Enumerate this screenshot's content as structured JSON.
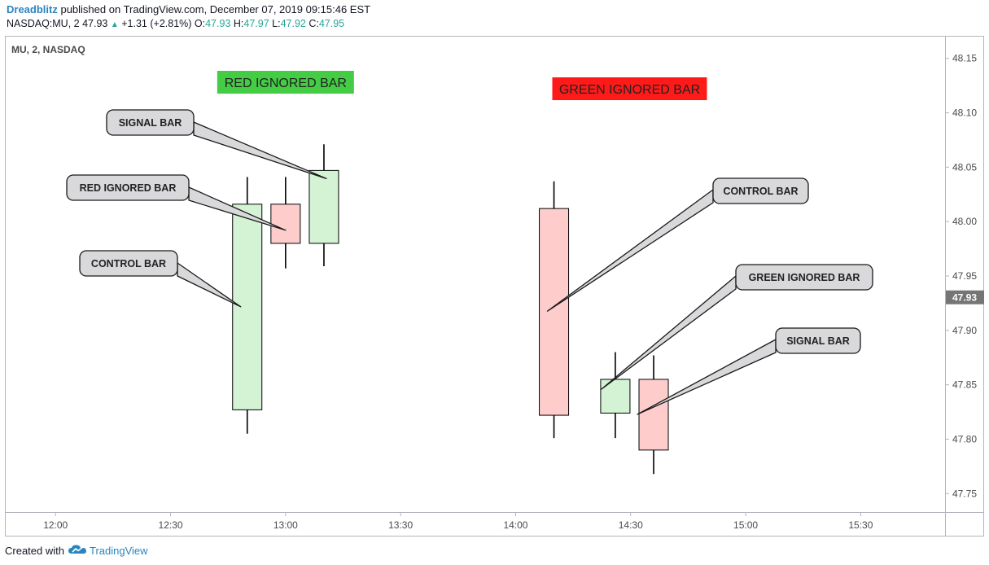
{
  "header": {
    "user": "Dreadblitz",
    "published": "published on TradingView.com, December 07, 2019 09:15:46 EST",
    "symbol": "NASDAQ:MU, 2",
    "last": "47.93",
    "change": "+1.31 (+2.81%)",
    "o_label": "O:",
    "o": "47.93",
    "h_label": "H:",
    "h": "47.97",
    "l_label": "L:",
    "l": "47.92",
    "c_label": "C:",
    "c": "47.95"
  },
  "footer": {
    "created_with": "Created with",
    "brand": "TradingView"
  },
  "colors": {
    "bull_fill": "#d4f2d4",
    "bear_fill": "#ffcccc",
    "wick": "#000000",
    "green_box": "#44cc44",
    "red_box": "#ff1a1a",
    "price_tag": "#757575",
    "callout_fill": "#d9d9dc"
  },
  "chart_data": {
    "type": "candlestick",
    "title": "MU, 2, NASDAQ",
    "current_price": "47.93",
    "x_ticks": [
      "12:00",
      "12:30",
      "13:00",
      "13:30",
      "14:00",
      "14:30",
      "15:00",
      "15:30"
    ],
    "y_ticks": [
      "48.15",
      "48.10",
      "48.05",
      "48.00",
      "47.95",
      "47.90",
      "47.85",
      "47.80",
      "47.75"
    ],
    "ylim": [
      47.733,
      48.17
    ],
    "xlim": [
      "11:47",
      "15:52"
    ],
    "candles": [
      {
        "time": "12:50",
        "open": 47.827,
        "high": 48.041,
        "low": 47.805,
        "close": 48.016
      },
      {
        "time": "13:00",
        "open": 48.016,
        "high": 48.041,
        "low": 47.957,
        "close": 47.98
      },
      {
        "time": "13:10",
        "open": 47.98,
        "high": 48.071,
        "low": 47.959,
        "close": 48.047
      },
      {
        "time": "14:10",
        "open": 48.012,
        "high": 48.037,
        "low": 47.801,
        "close": 47.822
      },
      {
        "time": "14:26",
        "open": 47.824,
        "high": 47.88,
        "low": 47.801,
        "close": 47.855
      },
      {
        "time": "14:36",
        "open": 47.855,
        "high": 47.877,
        "low": 47.768,
        "close": 47.79
      }
    ],
    "banners": [
      {
        "text": "RED IGNORED BAR",
        "style": "green"
      },
      {
        "text": "GREEN IGNORED BAR",
        "style": "red"
      }
    ],
    "callouts": [
      {
        "text": "SIGNAL BAR",
        "candle": 2
      },
      {
        "text": "RED IGNORED BAR",
        "candle": 1
      },
      {
        "text": "CONTROL BAR",
        "candle": 0
      },
      {
        "text": "CONTROL BAR",
        "candle": 3
      },
      {
        "text": "GREEN IGNORED BAR",
        "candle": 4
      },
      {
        "text": "SIGNAL BAR",
        "candle": 5
      }
    ]
  }
}
